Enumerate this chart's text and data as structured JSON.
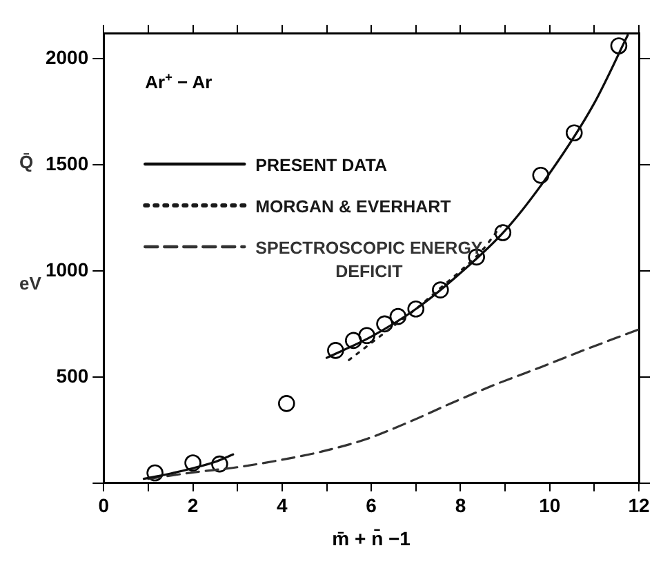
{
  "chart_data": {
    "type": "line",
    "xlabel": "m̄ + n̄ −1",
    "ylabel": "Q̄ eV",
    "annotations": [
      "Ar$^{+}$ − Ar"
    ],
    "xlim": [
      0,
      12
    ],
    "ylim": [
      0,
      2120
    ],
    "xticks": [
      0,
      {
        "value": 1,
        "label": null
      },
      2,
      {
        "value": 3,
        "label": null
      },
      4,
      {
        "value": 5,
        "label": null
      },
      6,
      {
        "value": 7,
        "label": null
      },
      8,
      {
        "value": 9,
        "label": null
      },
      10,
      {
        "value": 11,
        "label": null
      },
      12
    ],
    "yticks": [
      {
        "value": 0,
        "label": null
      },
      500,
      1000,
      1500,
      2000
    ],
    "grid": false,
    "legend": "top left",
    "series": [
      {
        "name": "PRESENT DATA",
        "color": "#0d0d0d",
        "marker": "none",
        "line_style": "solid",
        "x": [
          0.9,
          1.5,
          2,
          2.5,
          2.9,
          4,
          5,
          6,
          7,
          8,
          9,
          10,
          11,
          11.75
        ],
        "values": [
          20,
          45,
          70,
          100,
          135,
          null,
          590,
          690,
          820,
          990,
          1190,
          1460,
          1790,
          2110
        ]
      },
      {
        "name": "MORGAN & EVERHART",
        "color": "#1a1a1a",
        "marker": "none",
        "line_style": "dotted",
        "x": [
          5.5,
          6,
          6.5,
          7,
          7.5,
          8,
          8.5,
          8.9
        ],
        "values": [
          580,
          660,
          740,
          820,
          910,
          1000,
          1100,
          1210
        ]
      },
      {
        "name": "SPECTROSCOPIC ENERGY DEFICIT",
        "color": "#333333",
        "marker": "none",
        "line_style": "dashed",
        "x": [
          1,
          2,
          3,
          4,
          4.9,
          5.9,
          6.85,
          7.8,
          8.8,
          9.8,
          10.75,
          12
        ],
        "values": [
          20,
          50,
          75,
          110,
          149,
          208,
          288,
          377,
          466,
          546,
          625,
          724
        ]
      },
      {
        "type": "scatter",
        "color": "#000000",
        "marker": "circle",
        "x": [
          1.15,
          2,
          2.6,
          4.1,
          5.2,
          5.6,
          5.9,
          6.3,
          6.6,
          7,
          7.55,
          8.36,
          8.95,
          9.8,
          10.55,
          11.55
        ],
        "values": [
          48,
          95,
          90,
          375,
          625,
          672,
          695,
          750,
          785,
          820,
          910,
          1065,
          1180,
          1450,
          1650,
          2060
        ]
      }
    ]
  }
}
